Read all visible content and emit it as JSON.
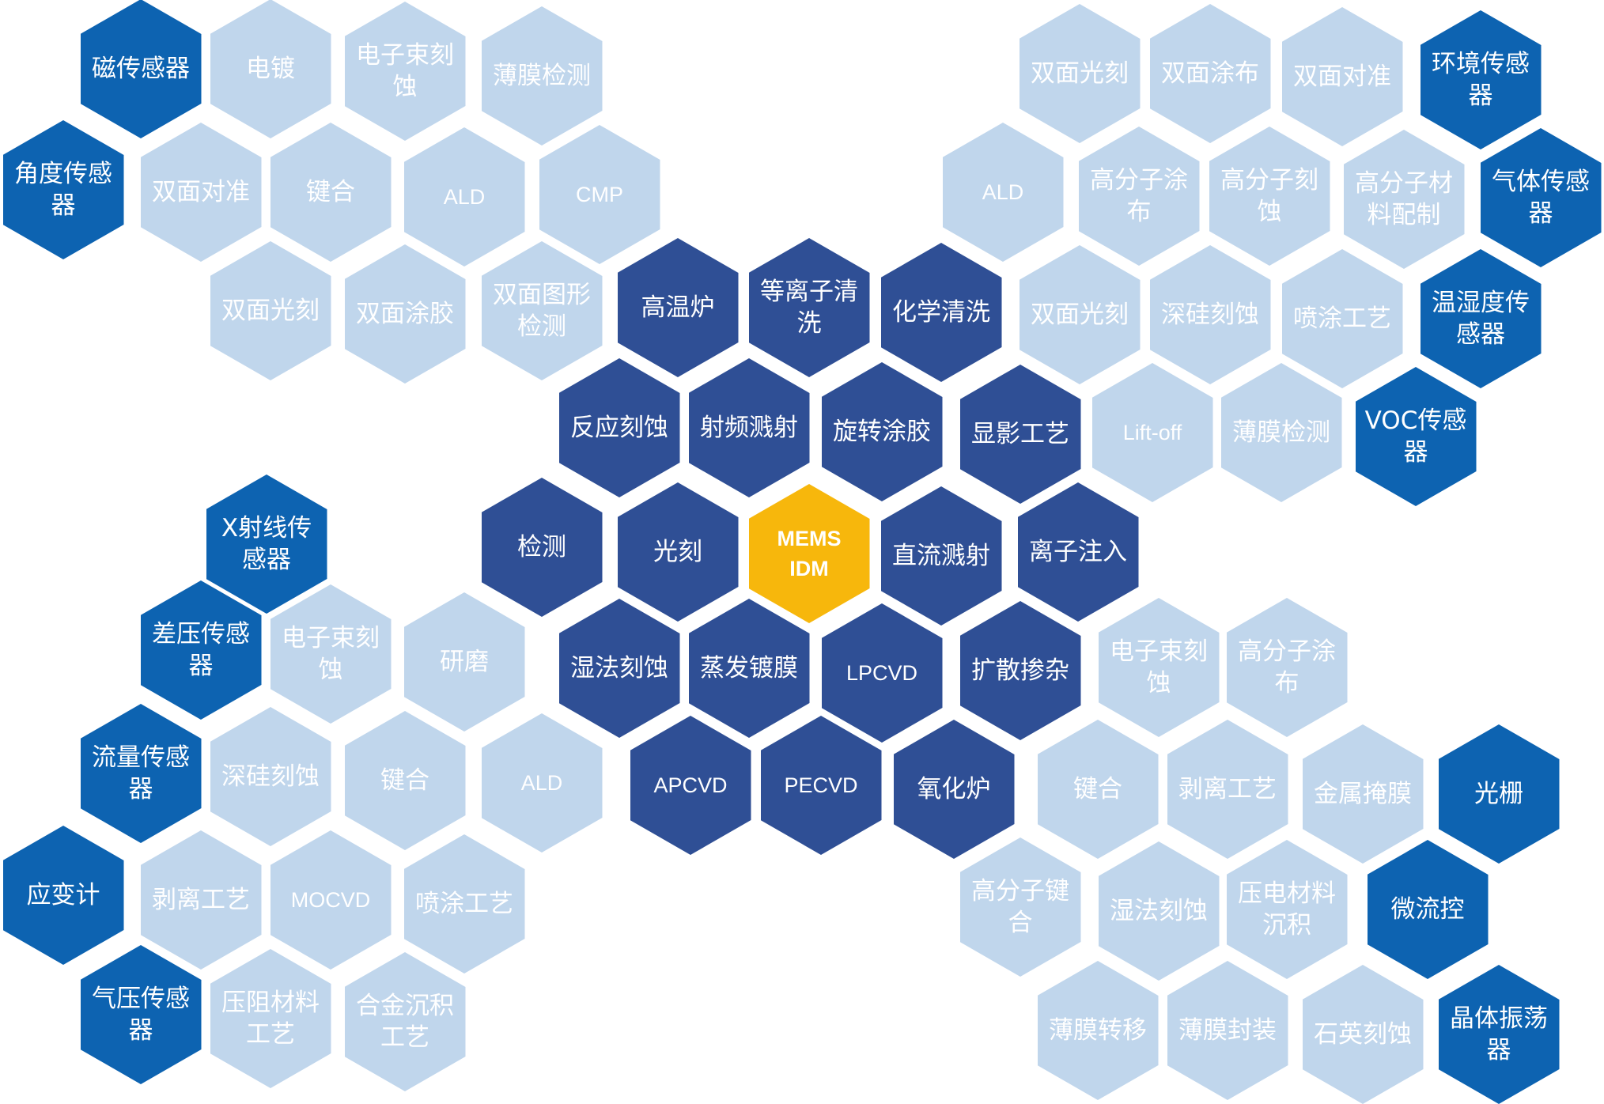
{
  "colors": {
    "light": "#c0d6ec",
    "dark": "#2f4f95",
    "sensor": "#0d63b1",
    "center": "#f7b70c"
  },
  "center": {
    "label": "MEMS\nIDM"
  },
  "process_cells": [
    {
      "id": "gaowenlu",
      "label": "高温炉"
    },
    {
      "id": "dengliziqingxi",
      "label": "等离子清\n洗"
    },
    {
      "id": "huaxueqingxi",
      "label": "化学清洗"
    },
    {
      "id": "fanyingkeshi",
      "label": "反应刻蚀"
    },
    {
      "id": "shepinjianshe",
      "label": "射频溅射"
    },
    {
      "id": "xuanzhuantujiao",
      "label": "旋转涂胶"
    },
    {
      "id": "xianyinggongyi",
      "label": "显影工艺"
    },
    {
      "id": "jiance",
      "label": "检测"
    },
    {
      "id": "guangke",
      "label": "光刻"
    },
    {
      "id": "zhiliujianshe",
      "label": "直流溅射"
    },
    {
      "id": "liziruru",
      "label": "离子注入"
    },
    {
      "id": "shifakeshi",
      "label": "湿法刻蚀"
    },
    {
      "id": "zhengfadumo",
      "label": "蒸发镀膜"
    },
    {
      "id": "lpcvd",
      "label": "LPCVD"
    },
    {
      "id": "kuosancanza",
      "label": "扩散掺杂"
    },
    {
      "id": "apcvd",
      "label": "APCVD"
    },
    {
      "id": "pecvd",
      "label": "PECVD"
    },
    {
      "id": "yanghualu",
      "label": "氧化炉"
    }
  ],
  "top_left_cluster": [
    {
      "id": "dianchu",
      "label": "电镀"
    },
    {
      "id": "dianzishukeshi",
      "label": "电子束刻\n蚀"
    },
    {
      "id": "bomojiance",
      "label": "薄膜检测"
    },
    {
      "id": "shuangmianduizhun",
      "label": "双面对准"
    },
    {
      "id": "jianhe",
      "label": "键合"
    },
    {
      "id": "ald",
      "label": "ALD"
    },
    {
      "id": "cmp",
      "label": "CMP"
    },
    {
      "id": "shuangmianguangke",
      "label": "双面光刻"
    },
    {
      "id": "shuangmiantujiao",
      "label": "双面涂胶"
    },
    {
      "id": "shuangmiantuxingjiance",
      "label": "双面图形\n检测"
    }
  ],
  "top_right_cluster": [
    {
      "id": "shuangmianguangke",
      "label": "双面光刻"
    },
    {
      "id": "shuangmiantubu",
      "label": "双面涂布"
    },
    {
      "id": "shuangmianduizhun",
      "label": "双面对准"
    },
    {
      "id": "ald",
      "label": "ALD"
    },
    {
      "id": "gaofenzitubu",
      "label": "高分子涂\n布"
    },
    {
      "id": "gaofenzikeshi",
      "label": "高分子刻\n蚀"
    },
    {
      "id": "gaofenzicailiaopeizhi",
      "label": "高分子材\n料配制"
    },
    {
      "id": "shuangmianguangke-2",
      "label": "双面光刻"
    },
    {
      "id": "shenguikeshi",
      "label": "深硅刻蚀"
    },
    {
      "id": "pentugongyi",
      "label": "喷涂工艺"
    },
    {
      "id": "lift-off",
      "label": "Lift-off"
    },
    {
      "id": "bomojiance",
      "label": "薄膜检测"
    }
  ],
  "bottom_left_cluster": [
    {
      "id": "dianzishukeshi",
      "label": "电子束刻\n蚀"
    },
    {
      "id": "yanmo",
      "label": "研磨"
    },
    {
      "id": "shenguikeshi",
      "label": "深硅刻蚀"
    },
    {
      "id": "jianhe",
      "label": "键合"
    },
    {
      "id": "ald",
      "label": "ALD"
    },
    {
      "id": "booligongyi",
      "label": "剥离工艺"
    },
    {
      "id": "mocvd",
      "label": "MOCVD"
    },
    {
      "id": "pentugongyi",
      "label": "喷涂工艺"
    },
    {
      "id": "yazucailiaogongyi",
      "label": "压阻材料\n工艺"
    },
    {
      "id": "hejinchenji",
      "label": "合金沉积\n工艺"
    }
  ],
  "bottom_right_cluster": [
    {
      "id": "dianzishukeshi",
      "label": "电子束刻\n蚀"
    },
    {
      "id": "gaofenzitubu",
      "label": "高分子涂\n布"
    },
    {
      "id": "jianhe",
      "label": "键合"
    },
    {
      "id": "bolligongyi",
      "label": "剥离工艺"
    },
    {
      "id": "jinshuyanmo",
      "label": "金属掩膜"
    },
    {
      "id": "gaofenzijianhe",
      "label": "高分子键\n合"
    },
    {
      "id": "shifakeshi",
      "label": "湿法刻蚀"
    },
    {
      "id": "yadiancailiaochenji",
      "label": "压电材料\n沉积"
    },
    {
      "id": "bomozhuanyi",
      "label": "薄膜转移"
    },
    {
      "id": "bomofengzhuang",
      "label": "薄膜封装"
    },
    {
      "id": "shiyingkeshi",
      "label": "石英刻蚀"
    }
  ],
  "sensors": [
    {
      "id": "cichuanganqi",
      "label": "磁传感器"
    },
    {
      "id": "jiaoduchuanganqi",
      "label": "角度传感\n器"
    },
    {
      "id": "huanjingchuanganqi",
      "label": "环境传感\n器"
    },
    {
      "id": "qitichuanganqi",
      "label": "气体传感\n器"
    },
    {
      "id": "wenshiduchuanganqi",
      "label": "温湿度传\n感器"
    },
    {
      "id": "vocchuanganqi",
      "label": "VOC传感\n器"
    },
    {
      "id": "xshexianchuanganqi",
      "label": "X射线传\n感器"
    },
    {
      "id": "chayachuanganqi",
      "label": "差压传感\n器"
    },
    {
      "id": "liuliangchuanganqi",
      "label": "流量传感\n器"
    },
    {
      "id": "yingbianji",
      "label": "应变计"
    },
    {
      "id": "qiyachuanganqi",
      "label": "气压传感\n器"
    },
    {
      "id": "guangshan",
      "label": "光栅"
    },
    {
      "id": "weiliukong",
      "label": "微流控"
    },
    {
      "id": "jingtizhendangqi",
      "label": "晶体振荡\n器"
    }
  ]
}
